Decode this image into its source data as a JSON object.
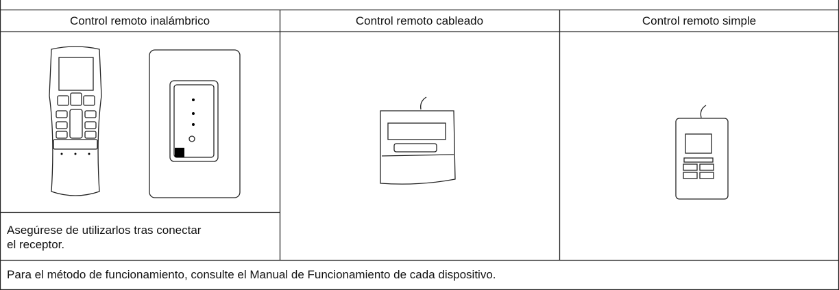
{
  "table": {
    "header": [
      "Control remoto inalámbrico",
      "Control remoto cableado",
      "Control remoto simple"
    ],
    "note": "Asegúrese de utilizarlos tras conectar el receptor.",
    "footer": "Para el método de funcionamiento, consulte el Manual de Funcionamiento de cada dispositivo."
  }
}
